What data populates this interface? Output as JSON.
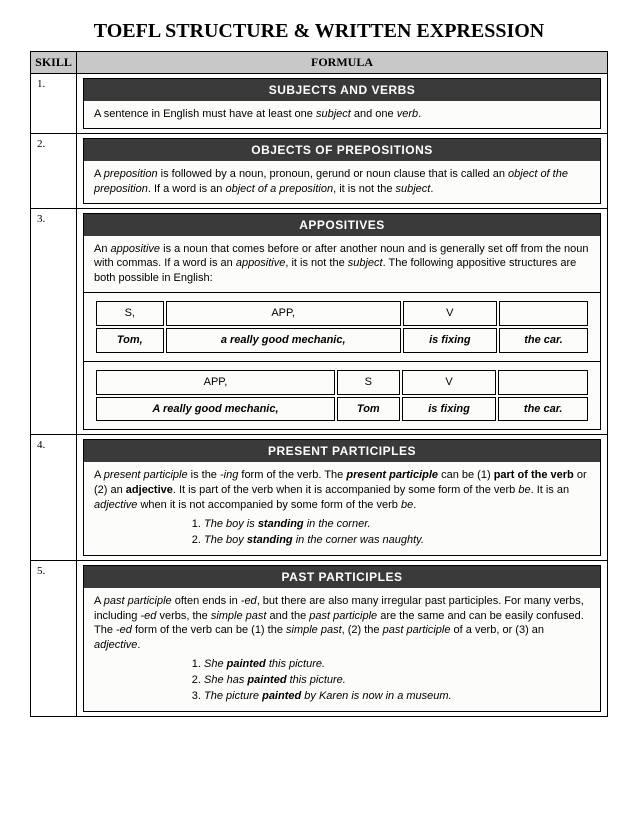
{
  "title": "TOEFL STRUCTURE & WRITTEN EXPRESSION",
  "headers": {
    "skill": "SKILL",
    "formula": "FORMULA"
  },
  "rows": [
    {
      "num": "1.",
      "card_title": "SUBJECTS AND VERBS",
      "body_html": "A sentence in English must have at least one <i>subject</i> and one <i>verb</i>."
    },
    {
      "num": "2.",
      "card_title": "OBJECTS OF PREPOSITIONS",
      "body_html": "A <i>preposition</i> is followed by a noun, pronoun, gerund or noun clause that is called an <i>object of the preposition</i>. If a word is an <i>object of a preposition</i>, it is not the <i>subject</i>."
    },
    {
      "num": "3.",
      "card_title": "APPOSITIVES",
      "body_html": "An <i>appositive</i> is a noun that comes before or after another noun and is generally set off from the noun with commas. If a word is an <i>appositive</i>, it is not the <i>subject</i>. The following appositive structures are both possible in English:",
      "examples": [
        {
          "labels": [
            "S,",
            "APP,",
            "V",
            ""
          ],
          "words": [
            "<b><i>Tom,</i></b>",
            "<b><i>a really good mechanic,</i></b>",
            "<b><i>is fixing</i></b>",
            "<b><i>the car.</i></b>"
          ]
        },
        {
          "labels": [
            "APP,",
            "S",
            "V",
            ""
          ],
          "words": [
            "<b><i>A really good mechanic,</i></b>",
            "<b><i>Tom</i></b>",
            "<b><i>is fixing</i></b>",
            "<b><i>the car.</i></b>"
          ]
        }
      ]
    },
    {
      "num": "4.",
      "card_title": "PRESENT PARTICIPLES",
      "body_html": "A <i>present participle</i> is the <i>-ing</i> form of the verb. The <b><i>present participle</i></b> can be (1) <b>part of the verb</b> or (2) an <b>adjective</b>. It is part of the verb when it is accompanied by some form of the verb <i>be</i>. It is an <i>adjective</i> when it is not accompanied by some form of the verb <i>be</i>.",
      "list": [
        "<i>The boy is <b>standing</b> in the corner.</i>",
        "<i>The boy <b>standing</b> in the corner was naughty.</i>"
      ]
    },
    {
      "num": "5.",
      "card_title": "PAST PARTICIPLES",
      "body_html": "A <i>past participle</i> often ends in <i>-ed</i>, but there are also many irregular past participles. For many verbs, including <i>-ed</i> verbs, the <i>simple past</i> and the <i>past participle</i> are the same and can be easily confused. The <i>-ed</i> form of the verb can be (1) the <i>simple past</i>, (2) the <i>past participle</i> of a verb, or (3) an <i>adjective</i>.",
      "list": [
        "<i>She <b>painted</b> this picture.</i>",
        "<i>She has <b>painted</b> this picture.</i>",
        "<i>The picture <b>painted</b> by Karen is now in a museum.</i>"
      ]
    }
  ]
}
